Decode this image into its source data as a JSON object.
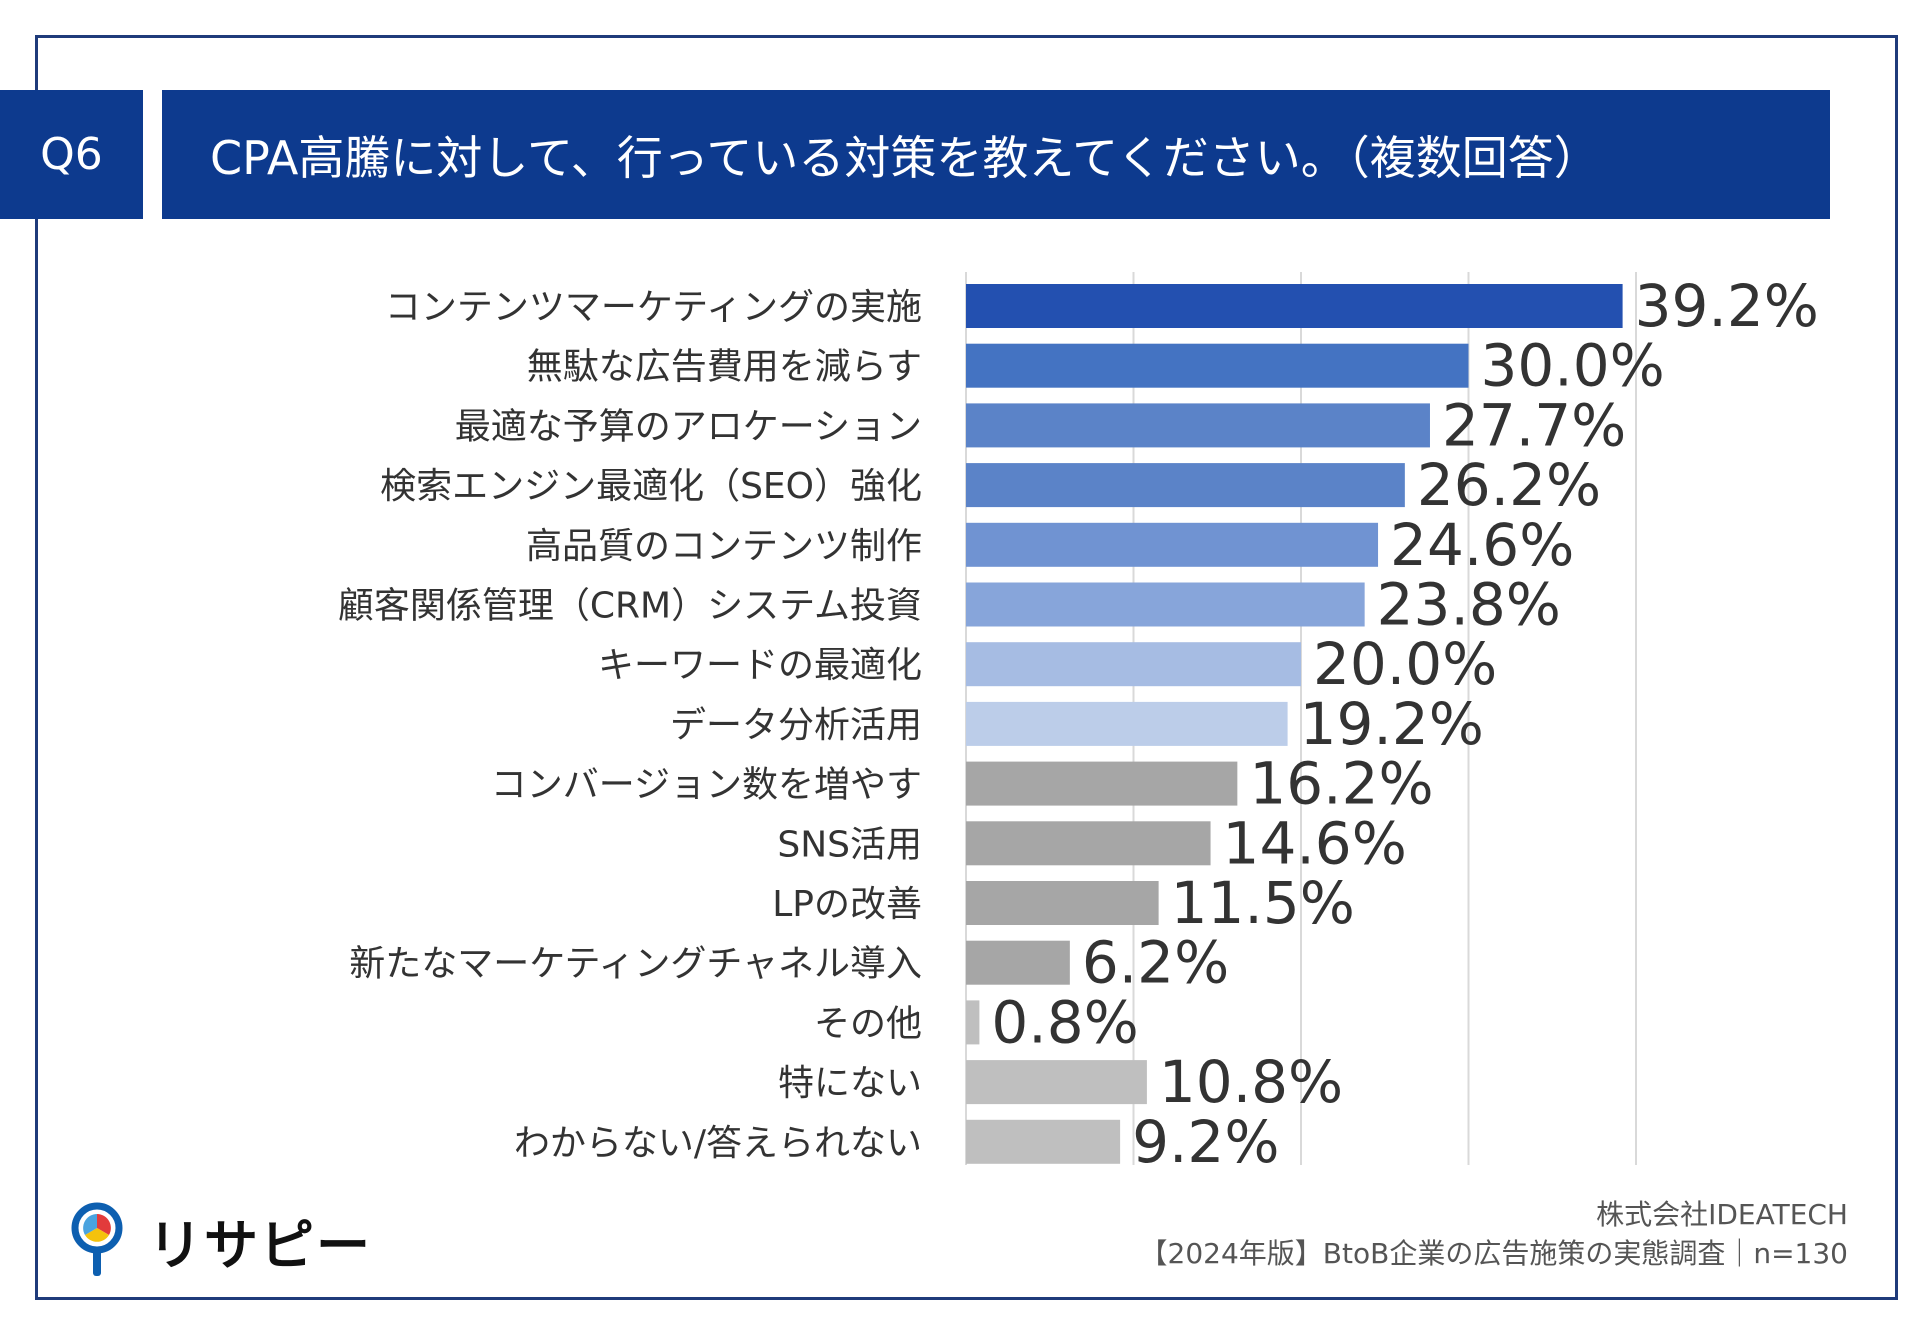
{
  "header": {
    "question_no": "Q6",
    "title": "CPA高騰に対して、行っている対策を教えてください。（複数回答）"
  },
  "chart_data": {
    "type": "bar",
    "orientation": "horizontal",
    "categories": [
      "コンテンツマーケティングの実施",
      "無駄な広告費用を減らす",
      "最適な予算のアロケーション",
      "検索エンジン最適化（SEO）強化",
      "高品質のコンテンツ制作",
      "顧客関係管理（CRM）システム投資",
      "キーワードの最適化",
      "データ分析活用",
      "コンバージョン数を増やす",
      "SNS活用",
      "LPの改善",
      "新たなマーケティングチャネル導入",
      "その他",
      "特にない",
      "わからない/答えられない"
    ],
    "values": [
      39.2,
      30.0,
      27.7,
      26.2,
      24.6,
      23.8,
      20.0,
      19.2,
      16.2,
      14.6,
      11.5,
      6.2,
      0.8,
      10.8,
      9.2
    ],
    "value_labels": [
      "39.2%",
      "30.0%",
      "27.7%",
      "26.2%",
      "24.6%",
      "23.8%",
      "20.0%",
      "19.2%",
      "16.2%",
      "14.6%",
      "11.5%",
      "6.2%",
      "0.8%",
      "10.8%",
      "9.2%"
    ],
    "colors": [
      "#2350b0",
      "#4473c2",
      "#5b83c8",
      "#5b83c8",
      "#7093d2",
      "#87a5da",
      "#a6bce3",
      "#bccde9",
      "#a6a6a6",
      "#a6a6a6",
      "#a6a6a6",
      "#a6a6a6",
      "#bfbfbf",
      "#bfbfbf",
      "#bfbfbf"
    ],
    "xlim": [
      0,
      50
    ],
    "gridlines": [
      0,
      10,
      20,
      30,
      40
    ],
    "unit": "%"
  },
  "footer": {
    "brand": "リサピー",
    "company": "株式会社IDEATECH",
    "survey": "【2024年版】BtoB企業の広告施策の実態調査｜n=130"
  },
  "logo_colors": {
    "ring": "#0d5fb0",
    "red": "#e23b3b",
    "yellow": "#f4c20d",
    "blue": "#4aa3df"
  }
}
